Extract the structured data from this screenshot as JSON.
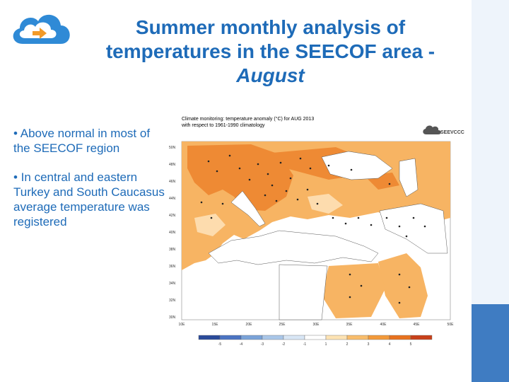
{
  "slide": {
    "title_line1": "Summer monthly analysis of",
    "title_line2": "temperatures in the SEECOF area -",
    "title_italic": "August",
    "bullets": [
      "• Above normal in most of the SEECOF region",
      "• In central and eastern Turkey and South Caucasus average temperature was registered"
    ]
  },
  "map": {
    "header_line1": "Climate monitoring: temperature anomaly (°C) for AUG 2013",
    "header_line2": "with respect to 1961-1990 climatology",
    "brand": "SEEVCCC",
    "lat_labels": [
      "50N",
      "48N",
      "46N",
      "44N",
      "42N",
      "40N",
      "38N",
      "36N",
      "34N",
      "32N",
      "30N"
    ],
    "lon_labels": [
      "10E",
      "15E",
      "20E",
      "25E",
      "30E",
      "35E",
      "40E",
      "45E",
      "50E"
    ],
    "colorbar_labels": [
      "-5",
      "-4",
      "-3",
      "-2",
      "-1",
      "1",
      "2",
      "3",
      "4",
      "5"
    ],
    "colorbar_colors": [
      "#2a4a9a",
      "#4b74c2",
      "#7aa3d8",
      "#a9c6e8",
      "#d8e6f5",
      "#ffffff",
      "#fde3b4",
      "#f9bd6c",
      "#f39a3a",
      "#e8721e",
      "#c8401a"
    ]
  },
  "colors": {
    "title": "#1e6bb8",
    "sidebar_light": "#eef4fb",
    "sidebar_dark": "#3f7cc2",
    "map_orange": "#f7b463",
    "map_dark_orange": "#ee8a34",
    "map_light": "#fddcae"
  },
  "icons": {
    "logo": "cloud-arrow-logo-icon",
    "brand": "seevccc-cloud-icon"
  }
}
